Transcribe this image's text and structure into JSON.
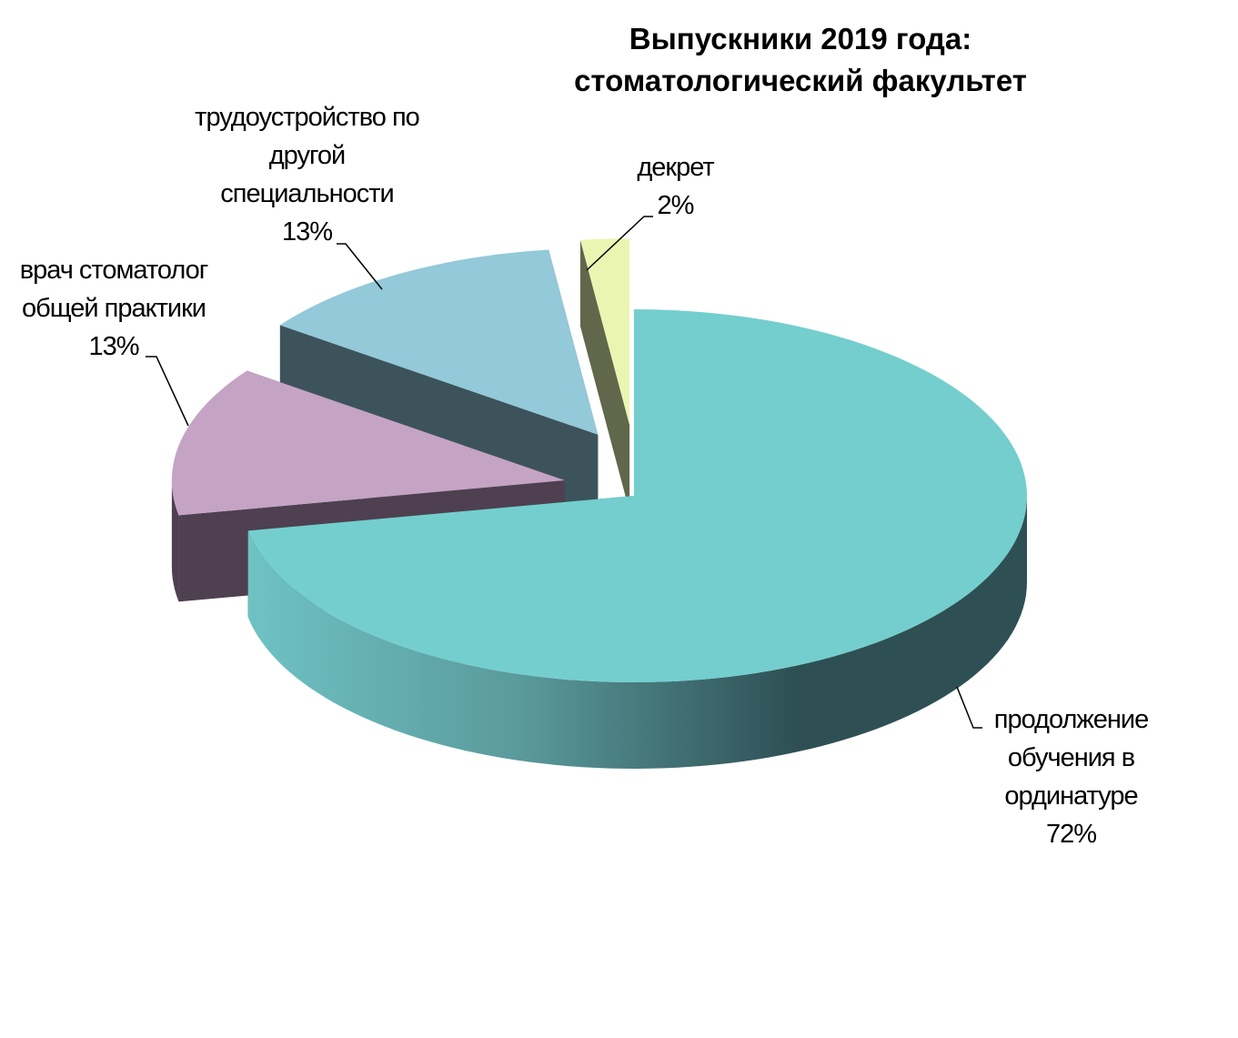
{
  "chart_data": {
    "type": "pie3d",
    "title": "Выпускники 2019 года: стоматологический факультет",
    "categories": [
      "продолжение обучения в ординатуре",
      "врач стоматолог общей практики",
      "трудоустройство по другой специальности",
      "декрет"
    ],
    "values": [
      72,
      13,
      13,
      2
    ],
    "value_labels": [
      "72%",
      "13%",
      "13%",
      "2%"
    ],
    "colors": [
      "#74cece",
      "#c5a3c4",
      "#93c9d8",
      "#ebf5b2"
    ],
    "side_colors": [
      "#2e5055",
      "#4e4050",
      "#3c535c",
      "#60674a"
    ]
  }
}
